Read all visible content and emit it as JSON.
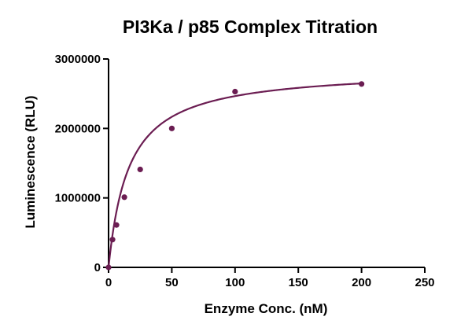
{
  "chart_data": {
    "type": "scatter",
    "title": "PI3Ka / p85 Complex Titration",
    "xlabel": "Enzyme Conc. (nM)",
    "ylabel": "Luminescence (RLU)",
    "xlim": [
      0,
      250
    ],
    "ylim": [
      0,
      3000000
    ],
    "xticks": [
      0,
      50,
      100,
      150,
      200,
      250
    ],
    "yticks": [
      0,
      1000000,
      2000000,
      3000000
    ],
    "xtick_labels": [
      "0",
      "50",
      "100",
      "150",
      "200",
      "250"
    ],
    "ytick_labels": [
      "0",
      "1000000",
      "2000000",
      "3000000"
    ],
    "grid": false,
    "legend": "none",
    "series": [
      {
        "x": [
          0,
          3.125,
          6.25,
          12.5,
          25,
          50,
          100,
          200
        ],
        "y": [
          0,
          400000,
          610000,
          1010000,
          1410000,
          2000000,
          2530000,
          2640000
        ],
        "color": "#6b1d52",
        "marker": "circle"
      }
    ],
    "fit_curve": {
      "model": "hyperbola",
      "bmax": 2860000,
      "kd": 16,
      "color": "#6b1d52"
    }
  }
}
